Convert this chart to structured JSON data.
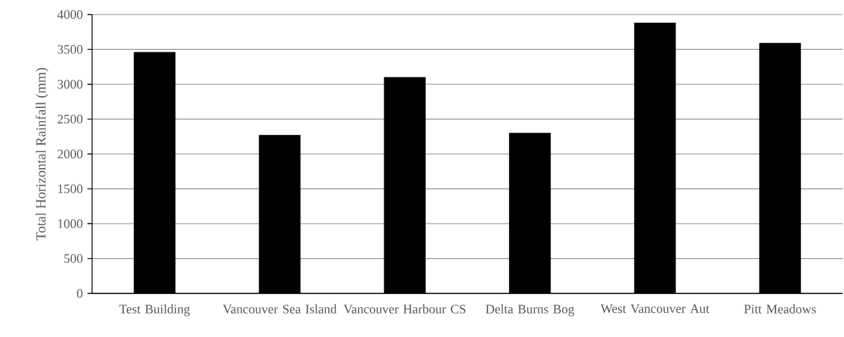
{
  "chart_data": {
    "type": "bar",
    "ylabel": "Total Horizontal Rainfall (mm)",
    "categories": [
      "Test Building",
      "Vancouver Sea Island",
      "Vancouver Harbour CS",
      "Delta Burns Bog",
      "West Vancouver Aut",
      "Pitt Meadows"
    ],
    "values": [
      3460,
      2270,
      3100,
      2300,
      3880,
      3590
    ],
    "color": "#000000",
    "ylim": [
      0,
      4000
    ],
    "yticks": [
      0,
      500,
      1000,
      1500,
      2000,
      2500,
      3000,
      3500,
      4000
    ],
    "grid": "y"
  }
}
